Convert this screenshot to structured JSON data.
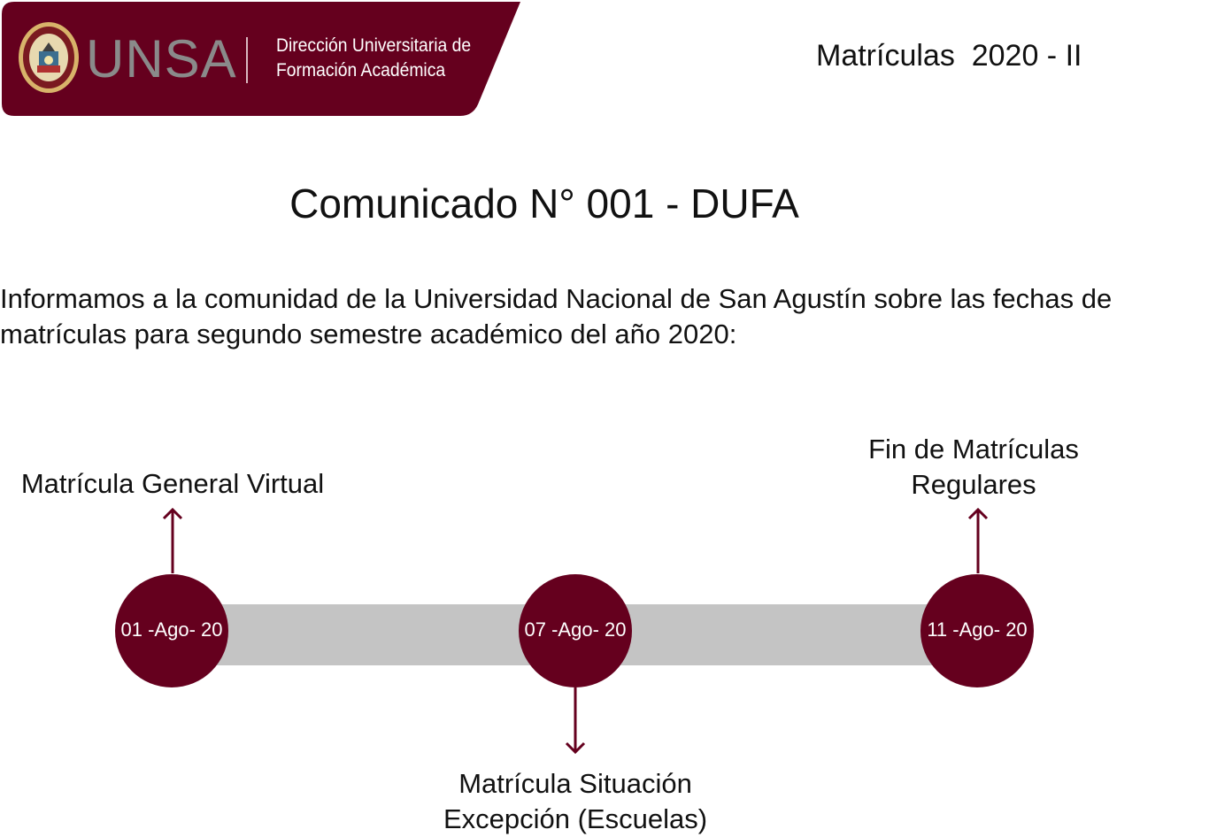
{
  "header": {
    "logo_text": "UNSA",
    "department_line_1": "Dirección Universitaria de",
    "department_line_2": "Formación Académica",
    "term_title": "Matrículas  2020 - II"
  },
  "notice": {
    "title": "Comunicado N° 001 - DUFA",
    "intro": "Informamos a la comunidad de la Universidad Nacional de San Agustín sobre las fechas de matrículas para segundo semestre académico del año 2020:"
  },
  "timeline": {
    "events": [
      {
        "date": "01 -Ago- 20",
        "label": "Matrícula General Virtual"
      },
      {
        "date": "07 -Ago- 20",
        "label": "Matrícula Situación Excepción (Escuelas)",
        "label_line_1": "Matrícula Situación",
        "label_line_2": "Excepción (Escuelas)"
      },
      {
        "date": "11 -Ago- 20",
        "label": "Fin de Matrículas Regulares",
        "label_line_1": "Fin de Matrículas",
        "label_line_2": "Regulares"
      }
    ]
  },
  "colors": {
    "brand": "#65001e",
    "track": "#c4c4c4",
    "text": "#111111"
  }
}
